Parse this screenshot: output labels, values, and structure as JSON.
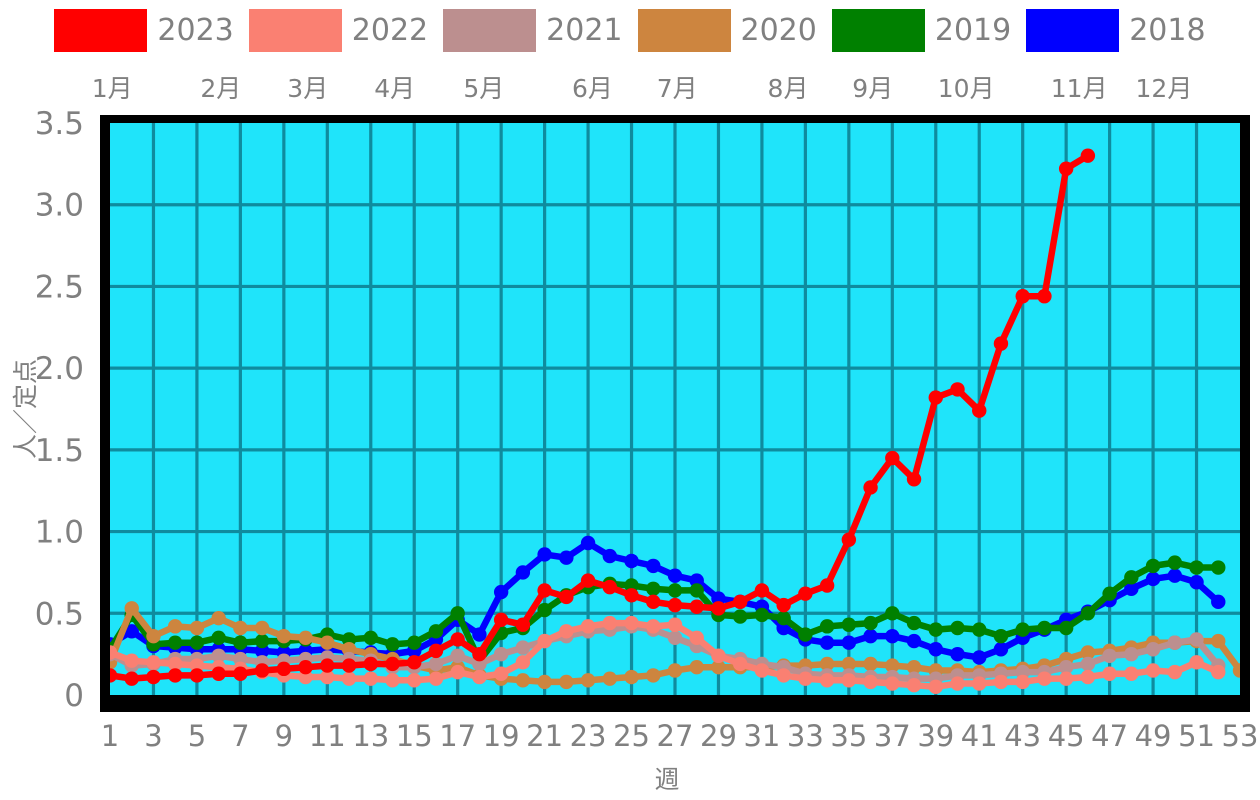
{
  "chart_data": {
    "type": "line",
    "title": "",
    "xlabel": "週",
    "ylabel": "人／定点",
    "x_range": [
      1,
      53
    ],
    "ylim": [
      0,
      3.5
    ],
    "ytick_labels": [
      "0",
      "0.5",
      "1.0",
      "1.5",
      "2.0",
      "2.5",
      "3.0",
      "3.5"
    ],
    "yticks": [
      0,
      0.5,
      1.0,
      1.5,
      2.0,
      2.5,
      3.0,
      3.5
    ],
    "xticks": [
      1,
      3,
      5,
      7,
      9,
      11,
      13,
      15,
      17,
      19,
      21,
      23,
      25,
      27,
      29,
      31,
      33,
      35,
      37,
      39,
      41,
      43,
      45,
      47,
      49,
      51,
      53
    ],
    "grid": true,
    "legend_position": "top",
    "months": [
      {
        "label": "1月",
        "week": 1.1
      },
      {
        "label": "2月",
        "week": 6.1
      },
      {
        "label": "3月",
        "week": 10.1
      },
      {
        "label": "4月",
        "week": 14.1
      },
      {
        "label": "5月",
        "week": 18.2
      },
      {
        "label": "6月",
        "week": 23.2
      },
      {
        "label": "7月",
        "week": 27.1
      },
      {
        "label": "8月",
        "week": 32.2
      },
      {
        "label": "9月",
        "week": 36.1
      },
      {
        "label": "10月",
        "week": 40.4
      },
      {
        "label": "11月",
        "week": 45.6
      },
      {
        "label": "12月",
        "week": 49.5
      }
    ],
    "colors": {
      "plot_background": "#1fe4fa",
      "grid_line": "#0f8b9e",
      "frame": "#000000",
      "text": "#808080",
      "page_background": "#ffffff"
    },
    "series": [
      {
        "name": "2023",
        "color": "#ff0000",
        "start_week": 1,
        "values": [
          0.12,
          0.1,
          0.11,
          0.12,
          0.12,
          0.13,
          0.13,
          0.15,
          0.16,
          0.17,
          0.18,
          0.18,
          0.19,
          0.19,
          0.2,
          0.27,
          0.34,
          0.25,
          0.46,
          0.43,
          0.64,
          0.6,
          0.7,
          0.66,
          0.61,
          0.57,
          0.55,
          0.54,
          0.53,
          0.57,
          0.64,
          0.55,
          0.62,
          0.67,
          0.95,
          1.27,
          1.45,
          1.32,
          1.82,
          1.87,
          1.74,
          2.15,
          2.44,
          2.44,
          3.22,
          3.3
        ]
      },
      {
        "name": "2022",
        "color": "#fa8072",
        "start_week": 1,
        "values": [
          0.26,
          0.21,
          0.2,
          0.19,
          0.18,
          0.17,
          0.16,
          0.14,
          0.12,
          0.11,
          0.11,
          0.1,
          0.1,
          0.09,
          0.09,
          0.1,
          0.14,
          0.11,
          0.13,
          0.2,
          0.33,
          0.39,
          0.42,
          0.44,
          0.44,
          0.42,
          0.43,
          0.35,
          0.24,
          0.19,
          0.15,
          0.12,
          0.1,
          0.09,
          0.09,
          0.08,
          0.07,
          0.06,
          0.05,
          0.07,
          0.07,
          0.08,
          0.08,
          0.1,
          0.1,
          0.11,
          0.13,
          0.13,
          0.15,
          0.14,
          0.2,
          0.14
        ]
      },
      {
        "name": "2021",
        "color": "#bc8f8f",
        "start_week": 1,
        "values": [
          0.25,
          0.18,
          0.19,
          0.22,
          0.22,
          0.24,
          0.22,
          0.2,
          0.21,
          0.22,
          0.23,
          0.22,
          0.21,
          0.17,
          0.17,
          0.19,
          0.24,
          0.19,
          0.25,
          0.29,
          0.33,
          0.36,
          0.39,
          0.4,
          0.42,
          0.4,
          0.35,
          0.3,
          0.24,
          0.22,
          0.19,
          0.17,
          0.13,
          0.12,
          0.12,
          0.11,
          0.11,
          0.1,
          0.1,
          0.12,
          0.12,
          0.13,
          0.14,
          0.14,
          0.17,
          0.19,
          0.24,
          0.25,
          0.28,
          0.32,
          0.34,
          0.18
        ]
      },
      {
        "name": "2020",
        "color": "#cd853f",
        "start_week": 1,
        "values": [
          0.2,
          0.53,
          0.36,
          0.42,
          0.41,
          0.47,
          0.41,
          0.41,
          0.36,
          0.35,
          0.32,
          0.28,
          0.25,
          0.22,
          0.18,
          0.15,
          0.17,
          0.12,
          0.1,
          0.09,
          0.08,
          0.08,
          0.09,
          0.1,
          0.11,
          0.12,
          0.15,
          0.17,
          0.17,
          0.17,
          0.17,
          0.18,
          0.18,
          0.19,
          0.19,
          0.19,
          0.18,
          0.17,
          0.15,
          0.15,
          0.14,
          0.15,
          0.16,
          0.18,
          0.22,
          0.26,
          0.27,
          0.29,
          0.32,
          0.32,
          0.33,
          0.33,
          0.15
        ]
      },
      {
        "name": "2019",
        "color": "#008000",
        "start_week": 1,
        "values": [
          0.28,
          0.49,
          0.31,
          0.32,
          0.32,
          0.35,
          0.32,
          0.33,
          0.33,
          0.34,
          0.37,
          0.34,
          0.35,
          0.31,
          0.32,
          0.39,
          0.5,
          0.21,
          0.38,
          0.41,
          0.52,
          0.61,
          0.66,
          0.68,
          0.67,
          0.65,
          0.64,
          0.64,
          0.49,
          0.48,
          0.49,
          0.47,
          0.37,
          0.42,
          0.43,
          0.44,
          0.5,
          0.44,
          0.4,
          0.41,
          0.4,
          0.36,
          0.4,
          0.41,
          0.41,
          0.5,
          0.62,
          0.72,
          0.79,
          0.81,
          0.78,
          0.78
        ]
      },
      {
        "name": "2018",
        "color": "#0000ff",
        "start_week": 1,
        "values": [
          0.31,
          0.39,
          0.3,
          0.29,
          0.28,
          0.28,
          0.28,
          0.27,
          0.26,
          0.27,
          0.28,
          0.27,
          0.26,
          0.25,
          0.27,
          0.34,
          0.46,
          0.37,
          0.63,
          0.75,
          0.86,
          0.84,
          0.93,
          0.85,
          0.82,
          0.79,
          0.73,
          0.7,
          0.59,
          0.57,
          0.54,
          0.41,
          0.34,
          0.32,
          0.32,
          0.36,
          0.36,
          0.33,
          0.28,
          0.25,
          0.23,
          0.28,
          0.35,
          0.4,
          0.46,
          0.51,
          0.58,
          0.65,
          0.71,
          0.73,
          0.69,
          0.57
        ]
      }
    ]
  }
}
